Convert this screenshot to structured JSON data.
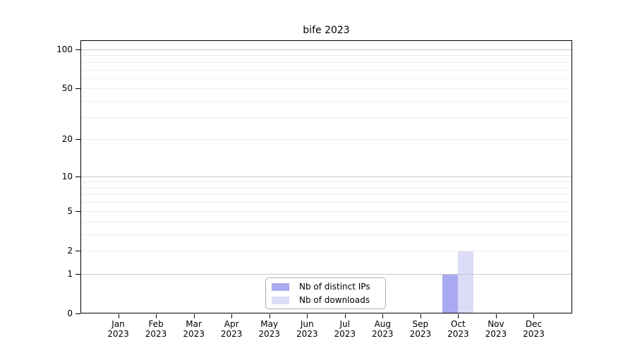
{
  "title": "bife 2023",
  "colors": {
    "distinct_ips": "#aaaaf2",
    "downloads": "#dddcf8",
    "grid_major": "#c7c7c7",
    "grid_minor": "#eeeeee",
    "axis": "#000000",
    "legend_border": "#b0b0b0",
    "background": "#ffffff"
  },
  "legend": {
    "items": [
      {
        "label": "Nb of distinct IPs",
        "color": "#aaaaf2"
      },
      {
        "label": "Nb of downloads",
        "color": "#dddcf8"
      }
    ]
  },
  "chart_data": {
    "type": "bar",
    "title": "bife 2023",
    "categories": [
      "Jan",
      "Feb",
      "Mar",
      "Apr",
      "May",
      "Jun",
      "Jul",
      "Aug",
      "Sep",
      "Oct",
      "Nov",
      "Dec"
    ],
    "year": "2023",
    "series": [
      {
        "name": "Nb of distinct IPs",
        "color": "#aaaaf2",
        "values": [
          0,
          0,
          0,
          0,
          0,
          0,
          0,
          0,
          0,
          1,
          0,
          0
        ]
      },
      {
        "name": "Nb of downloads",
        "color": "#dddcf8",
        "values": [
          0,
          0,
          0,
          0,
          0,
          0,
          0,
          0,
          0,
          2,
          0,
          0
        ]
      }
    ],
    "yticks": [
      0,
      1,
      2,
      5,
      10,
      20,
      50,
      100
    ],
    "ylim": [
      0,
      100
    ],
    "yscale": "log1p",
    "grid": true,
    "gridlines": {
      "major": [
        1,
        10,
        100
      ],
      "minor": [
        2,
        3,
        4,
        5,
        6,
        7,
        8,
        9,
        20,
        30,
        40,
        50,
        60,
        70,
        80,
        90
      ]
    },
    "legend_position": "inside-bottom-center"
  }
}
